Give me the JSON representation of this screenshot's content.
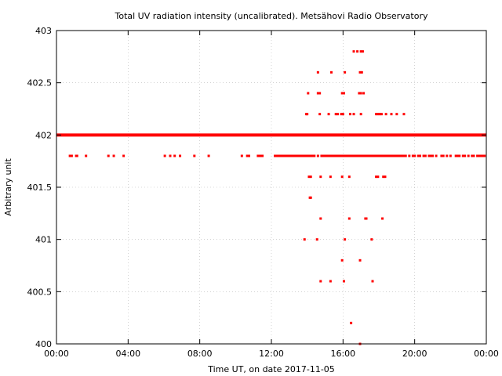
{
  "chart_data": {
    "type": "scatter",
    "title": "Total UV radiation intensity (uncalibrated). Metsähovi Radio Observatory",
    "xlabel": "Time UT, on date 2017-11-05",
    "ylabel": "Arbitrary unit",
    "xlim": [
      0,
      24
    ],
    "ylim": [
      400,
      403
    ],
    "x_ticks": [
      0,
      4,
      8,
      12,
      16,
      20,
      24
    ],
    "x_tick_labels": [
      "00:00",
      "04:00",
      "08:00",
      "12:00",
      "16:00",
      "20:00",
      "00:00"
    ],
    "y_ticks": [
      400,
      400.5,
      401,
      401.5,
      402,
      402.5,
      403
    ],
    "y_tick_labels": [
      "400",
      "400.5",
      "401",
      "401.5",
      "402",
      "402.5",
      "403"
    ],
    "grid": true,
    "series_color": "#ff0000",
    "baseline": {
      "y": 402,
      "x_start": 0,
      "x_end": 24
    },
    "series": [
      {
        "values": [
          [
            0.75,
            401.8
          ],
          [
            0.85,
            401.8
          ],
          [
            1.1,
            401.8
          ],
          [
            1.15,
            401.8
          ],
          [
            1.65,
            401.8
          ],
          [
            2.9,
            401.8
          ],
          [
            3.2,
            401.8
          ],
          [
            3.75,
            401.8
          ],
          [
            6.05,
            401.8
          ],
          [
            6.35,
            401.8
          ],
          [
            6.6,
            401.8
          ],
          [
            6.9,
            401.8
          ],
          [
            7.7,
            401.8
          ],
          [
            8.5,
            401.8
          ],
          [
            10.35,
            401.8
          ],
          [
            10.65,
            401.8
          ],
          [
            10.75,
            401.8
          ],
          [
            11.25,
            401.8
          ],
          [
            11.35,
            401.8
          ],
          [
            11.4,
            401.8
          ],
          [
            11.5,
            401.8
          ],
          [
            12.2,
            401.8
          ],
          [
            12.3,
            401.8
          ],
          [
            12.4,
            401.8
          ],
          [
            12.5,
            401.8
          ],
          [
            12.6,
            401.8
          ],
          [
            12.7,
            401.8
          ],
          [
            12.8,
            401.8
          ],
          [
            12.9,
            401.8
          ],
          [
            13.0,
            401.8
          ],
          [
            13.1,
            401.8
          ],
          [
            13.2,
            401.8
          ],
          [
            13.3,
            401.8
          ],
          [
            13.4,
            401.8
          ],
          [
            13.5,
            401.8
          ],
          [
            13.6,
            401.8
          ],
          [
            13.7,
            401.8
          ],
          [
            13.8,
            401.8
          ],
          [
            13.9,
            401.8
          ],
          [
            14.0,
            401.8
          ],
          [
            14.1,
            401.8
          ],
          [
            14.2,
            401.8
          ],
          [
            14.3,
            401.8
          ],
          [
            14.4,
            401.8
          ],
          [
            14.6,
            401.8
          ],
          [
            14.8,
            401.8
          ],
          [
            14.9,
            401.8
          ],
          [
            15.0,
            401.8
          ],
          [
            15.1,
            401.8
          ],
          [
            15.2,
            401.8
          ],
          [
            15.3,
            401.8
          ],
          [
            15.4,
            401.8
          ],
          [
            15.5,
            401.8
          ],
          [
            15.6,
            401.8
          ],
          [
            15.7,
            401.8
          ],
          [
            15.8,
            401.8
          ],
          [
            15.9,
            401.8
          ],
          [
            16.0,
            401.8
          ],
          [
            16.1,
            401.8
          ],
          [
            16.2,
            401.8
          ],
          [
            16.3,
            401.8
          ],
          [
            16.4,
            401.8
          ],
          [
            16.5,
            401.8
          ],
          [
            16.6,
            401.8
          ],
          [
            16.7,
            401.8
          ],
          [
            16.8,
            401.8
          ],
          [
            16.9,
            401.8
          ],
          [
            17.0,
            401.8
          ],
          [
            17.1,
            401.8
          ],
          [
            17.2,
            401.8
          ],
          [
            17.3,
            401.8
          ],
          [
            17.4,
            401.8
          ],
          [
            17.5,
            401.8
          ],
          [
            17.6,
            401.8
          ],
          [
            17.7,
            401.8
          ],
          [
            17.8,
            401.8
          ],
          [
            17.9,
            401.8
          ],
          [
            18.0,
            401.8
          ],
          [
            18.1,
            401.8
          ],
          [
            18.2,
            401.8
          ],
          [
            18.3,
            401.8
          ],
          [
            18.4,
            401.8
          ],
          [
            18.5,
            401.8
          ],
          [
            18.6,
            401.8
          ],
          [
            18.7,
            401.8
          ],
          [
            18.8,
            401.8
          ],
          [
            18.9,
            401.8
          ],
          [
            19.0,
            401.8
          ],
          [
            19.1,
            401.8
          ],
          [
            19.2,
            401.8
          ],
          [
            19.3,
            401.8
          ],
          [
            19.4,
            401.8
          ],
          [
            19.5,
            401.8
          ],
          [
            19.7,
            401.8
          ],
          [
            19.9,
            401.8
          ],
          [
            20.0,
            401.8
          ],
          [
            20.2,
            401.8
          ],
          [
            20.3,
            401.8
          ],
          [
            20.5,
            401.8
          ],
          [
            20.6,
            401.8
          ],
          [
            20.8,
            401.8
          ],
          [
            20.9,
            401.8
          ],
          [
            21.0,
            401.8
          ],
          [
            21.2,
            401.8
          ],
          [
            21.5,
            401.8
          ],
          [
            21.6,
            401.8
          ],
          [
            21.8,
            401.8
          ],
          [
            22.0,
            401.8
          ],
          [
            22.3,
            401.8
          ],
          [
            22.4,
            401.8
          ],
          [
            22.5,
            401.8
          ],
          [
            22.7,
            401.8
          ],
          [
            22.8,
            401.8
          ],
          [
            23.0,
            401.8
          ],
          [
            23.2,
            401.8
          ],
          [
            23.3,
            401.8
          ],
          [
            23.5,
            401.8
          ],
          [
            23.6,
            401.8
          ],
          [
            23.7,
            401.8
          ],
          [
            23.8,
            401.8
          ],
          [
            23.9,
            401.8
          ],
          [
            16.6,
            402.8
          ],
          [
            16.8,
            402.8
          ],
          [
            17.0,
            402.8
          ],
          [
            17.1,
            402.8
          ],
          [
            16.95,
            402.6
          ],
          [
            17.05,
            402.6
          ],
          [
            16.1,
            402.6
          ],
          [
            15.35,
            402.6
          ],
          [
            14.6,
            402.6
          ],
          [
            14.05,
            402.4
          ],
          [
            14.6,
            402.4
          ],
          [
            14.7,
            402.4
          ],
          [
            15.95,
            402.4
          ],
          [
            16.05,
            402.4
          ],
          [
            16.9,
            402.4
          ],
          [
            17.0,
            402.4
          ],
          [
            17.15,
            402.4
          ],
          [
            13.95,
            402.2
          ],
          [
            14.0,
            402.2
          ],
          [
            14.7,
            402.2
          ],
          [
            15.2,
            402.2
          ],
          [
            15.6,
            402.2
          ],
          [
            15.7,
            402.2
          ],
          [
            15.9,
            402.2
          ],
          [
            16.0,
            402.2
          ],
          [
            16.4,
            402.2
          ],
          [
            16.6,
            402.2
          ],
          [
            17.0,
            402.2
          ],
          [
            17.85,
            402.2
          ],
          [
            17.95,
            402.2
          ],
          [
            18.05,
            402.2
          ],
          [
            18.15,
            402.2
          ],
          [
            18.4,
            402.2
          ],
          [
            18.7,
            402.2
          ],
          [
            19.0,
            402.2
          ],
          [
            19.4,
            402.2
          ],
          [
            14.1,
            401.6
          ],
          [
            14.2,
            401.6
          ],
          [
            14.75,
            401.6
          ],
          [
            15.3,
            401.6
          ],
          [
            15.95,
            401.6
          ],
          [
            16.35,
            401.6
          ],
          [
            17.85,
            401.6
          ],
          [
            17.95,
            401.6
          ],
          [
            18.25,
            401.6
          ],
          [
            18.35,
            401.6
          ],
          [
            14.15,
            401.4
          ],
          [
            14.2,
            401.4
          ],
          [
            14.75,
            401.2
          ],
          [
            16.35,
            401.2
          ],
          [
            17.25,
            401.2
          ],
          [
            17.3,
            401.2
          ],
          [
            18.2,
            401.2
          ],
          [
            13.85,
            401.0
          ],
          [
            14.55,
            401.0
          ],
          [
            16.1,
            401.0
          ],
          [
            17.6,
            401.0
          ],
          [
            15.95,
            400.8
          ],
          [
            16.95,
            400.8
          ],
          [
            14.75,
            400.6
          ],
          [
            15.3,
            400.6
          ],
          [
            16.05,
            400.6
          ],
          [
            17.65,
            400.6
          ],
          [
            16.45,
            400.2
          ],
          [
            16.95,
            400.0
          ]
        ]
      }
    ]
  }
}
